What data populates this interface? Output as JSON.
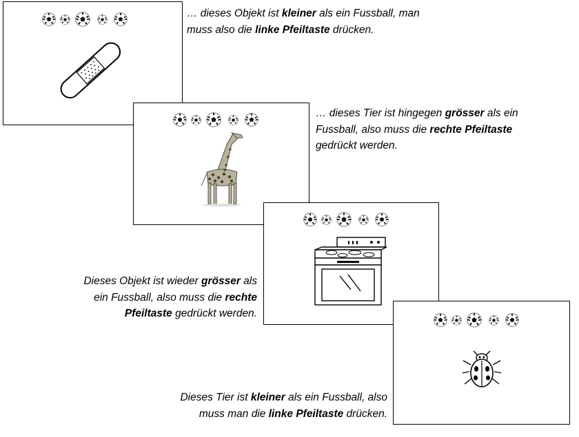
{
  "panels": [
    {
      "object_icon": "band-aid-icon"
    },
    {
      "object_icon": "giraffe-icon"
    },
    {
      "object_icon": "stove-icon"
    },
    {
      "object_icon": "ladybug-icon"
    }
  ],
  "captions": [
    {
      "lines": [
        [
          {
            "t": "… dieses "
          },
          {
            "t": "Objekt"
          },
          {
            "t": " ist "
          },
          {
            "t": "kleiner",
            "b": true
          },
          {
            "t": " als ein Fussball, man"
          }
        ],
        [
          {
            "t": "muss also die "
          },
          {
            "t": "linke Pfeiltaste",
            "b": true
          },
          {
            "t": " drücken."
          }
        ]
      ]
    },
    {
      "lines": [
        [
          {
            "t": "… dieses Tier ist hingegen "
          },
          {
            "t": "grösser",
            "b": true
          },
          {
            "t": " als ein"
          }
        ],
        [
          {
            "t": "Fussball, also muss die "
          },
          {
            "t": "rechte Pfeiltaste",
            "b": true
          }
        ],
        [
          {
            "t": "gedrückt werden."
          }
        ]
      ]
    },
    {
      "lines": [
        [
          {
            "t": "Dieses Objekt ist wieder "
          },
          {
            "t": "grösser",
            "b": true
          },
          {
            "t": " als"
          }
        ],
        [
          {
            "t": "ein Fussball, also muss die "
          },
          {
            "t": "rechte",
            "b": true
          }
        ],
        [
          {
            "t": "Pfeiltaste",
            "b": true
          },
          {
            "t": " gedrückt werden."
          }
        ]
      ]
    },
    {
      "lines": [
        [
          {
            "t": "Dieses Tier ist "
          },
          {
            "t": "kleiner",
            "b": true
          },
          {
            "t": " als ein Fussball, also"
          }
        ],
        [
          {
            "t": "muss man die "
          },
          {
            "t": "linke Pfeiltaste",
            "b": true
          },
          {
            "t": " drücken."
          }
        ]
      ]
    }
  ]
}
